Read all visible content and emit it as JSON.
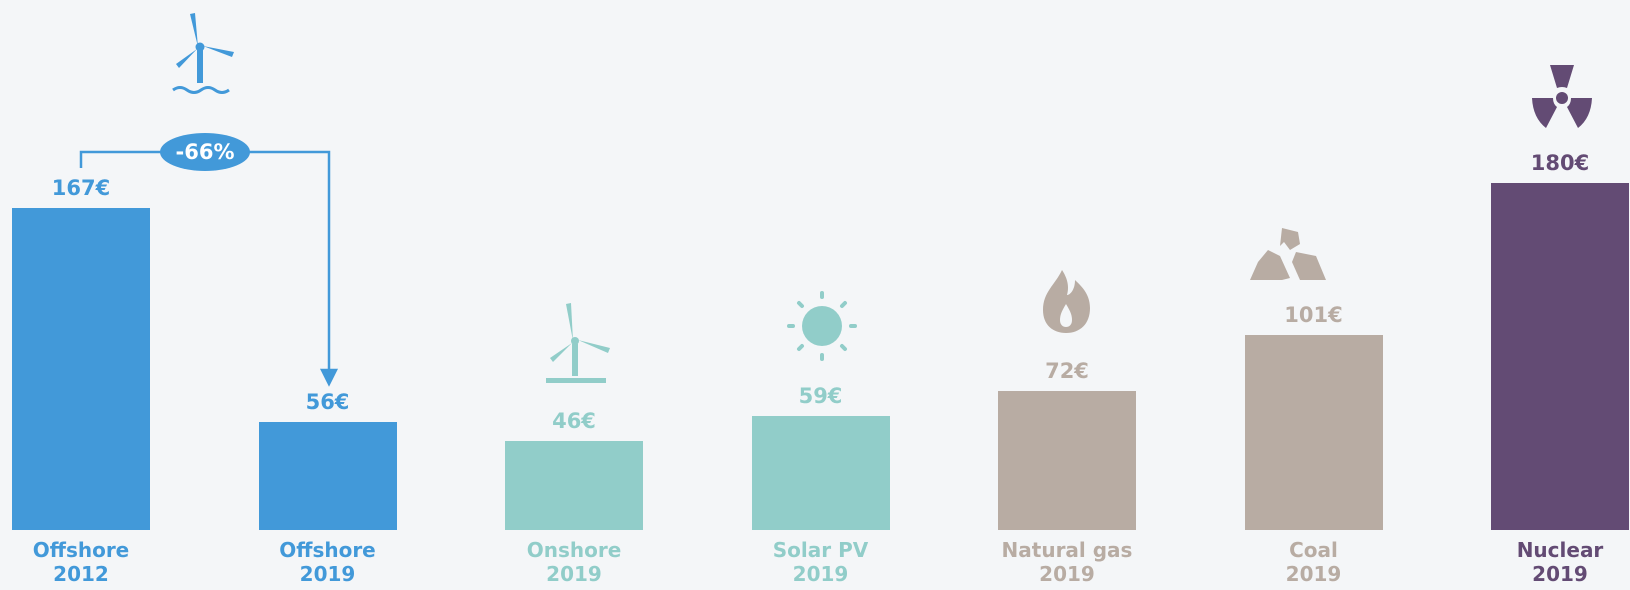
{
  "chart_data": {
    "type": "bar",
    "categories": [
      "Offshore\n2012",
      "Offshore\n2019",
      "Onshore\n2019",
      "Solar PV\n2019",
      "Natural gas\n2019",
      "Coal\n2019",
      "Nuclear\n2019"
    ],
    "values": [
      167,
      56,
      46,
      59,
      72,
      101,
      180
    ],
    "value_labels": [
      "167€",
      "56€",
      "46€",
      "59€",
      "72€",
      "101€",
      "180€"
    ],
    "colors": [
      "#4299d9",
      "#4299d9",
      "#91cdc9",
      "#91cdc9",
      "#b8aca3",
      "#b8aca3",
      "#634b74"
    ],
    "annotation": "-66%"
  }
}
